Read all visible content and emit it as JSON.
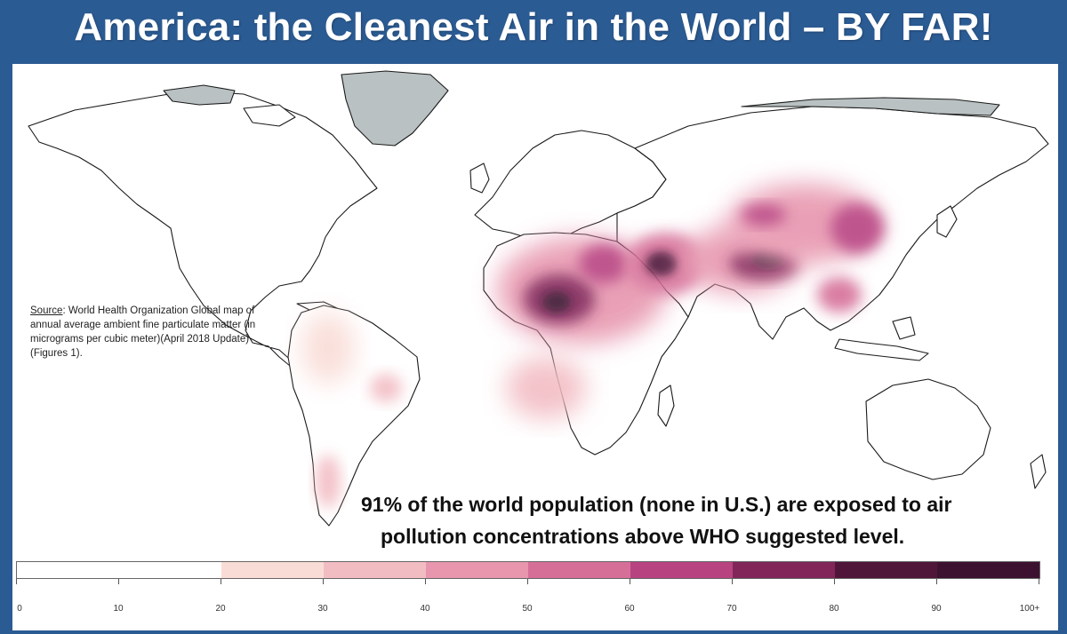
{
  "slide": {
    "title": "America: the Cleanest Air in the World – BY FAR!"
  },
  "source_note": {
    "label": "Source",
    "text": ": World Health Organization Global map of annual average ambient fine particulate matter (in micrograms per cubic meter)(April 2018 Update)(Figures 1)."
  },
  "callout": {
    "line1": "91% of the world population (none in U.S.) are exposed to air",
    "line2": "pollution concentrations above WHO suggested level."
  },
  "legend": {
    "tick_labels": [
      "0",
      "10",
      "20",
      "30",
      "40",
      "50",
      "60",
      "70",
      "80",
      "90",
      "100+"
    ],
    "colors": [
      "#ffffff",
      "#ffffff",
      "#f9dcd6",
      "#f2bcc3",
      "#e796ae",
      "#d66f98",
      "#b84381",
      "#82265a",
      "#50163a",
      "#3d1230"
    ]
  },
  "colors": {
    "slide_background": "#2b5b93",
    "land_outline": "#1a1a1a",
    "no_data_gray": "#b9c1c2"
  }
}
